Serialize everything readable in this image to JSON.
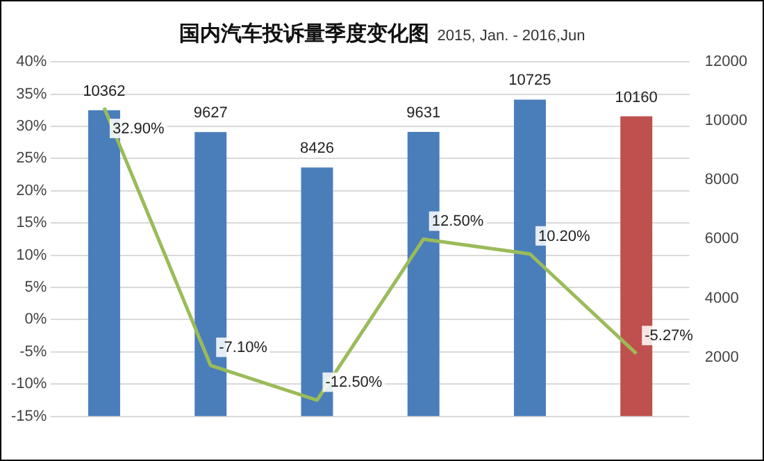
{
  "chart_data": {
    "type": "bar",
    "title": "国内汽车投诉量季度变化图",
    "subtitle": "2015, Jan. - 2016,Jun",
    "categories": [
      null,
      null,
      null,
      null,
      null,
      null
    ],
    "series": [
      {
        "type": "bar",
        "axis": "y2",
        "colors": [
          "#4a7ebb",
          "#4a7ebb",
          "#4a7ebb",
          "#4a7ebb",
          "#4a7ebb",
          "#c0504d"
        ],
        "values": [
          10362,
          9627,
          8426,
          9631,
          10725,
          10160
        ],
        "value_labels": [
          "10362",
          "9627",
          "8426",
          "9631",
          "10725",
          "10160"
        ]
      },
      {
        "type": "line",
        "color": "#9bbb59",
        "marker": "none",
        "values": [
          32.9,
          -7.1,
          -12.5,
          12.5,
          10.2,
          -5.27
        ],
        "value_labels": [
          "32.90%",
          "-7.10%",
          "-12.50%",
          "12.50%",
          "10.20%",
          "-5.27%"
        ]
      }
    ],
    "ylim": [
      -15,
      40
    ],
    "yticks": [
      {
        "value": -15,
        "label": "-15%"
      },
      {
        "value": -10,
        "label": "-10%"
      },
      {
        "value": -5,
        "label": "-5%"
      },
      {
        "value": 0,
        "label": "0%"
      },
      {
        "value": 5,
        "label": "5%"
      },
      {
        "value": 10,
        "label": "10%"
      },
      {
        "value": 15,
        "label": "15%"
      },
      {
        "value": 20,
        "label": "20%"
      },
      {
        "value": 25,
        "label": "25%"
      },
      {
        "value": 30,
        "label": "30%"
      },
      {
        "value": 35,
        "label": "35%"
      },
      {
        "value": 40,
        "label": "40%"
      }
    ],
    "y2lim": [
      0,
      12000
    ],
    "y2ticks": [
      2000,
      4000,
      6000,
      8000,
      10000,
      12000
    ],
    "grid": "y",
    "legend": false
  }
}
